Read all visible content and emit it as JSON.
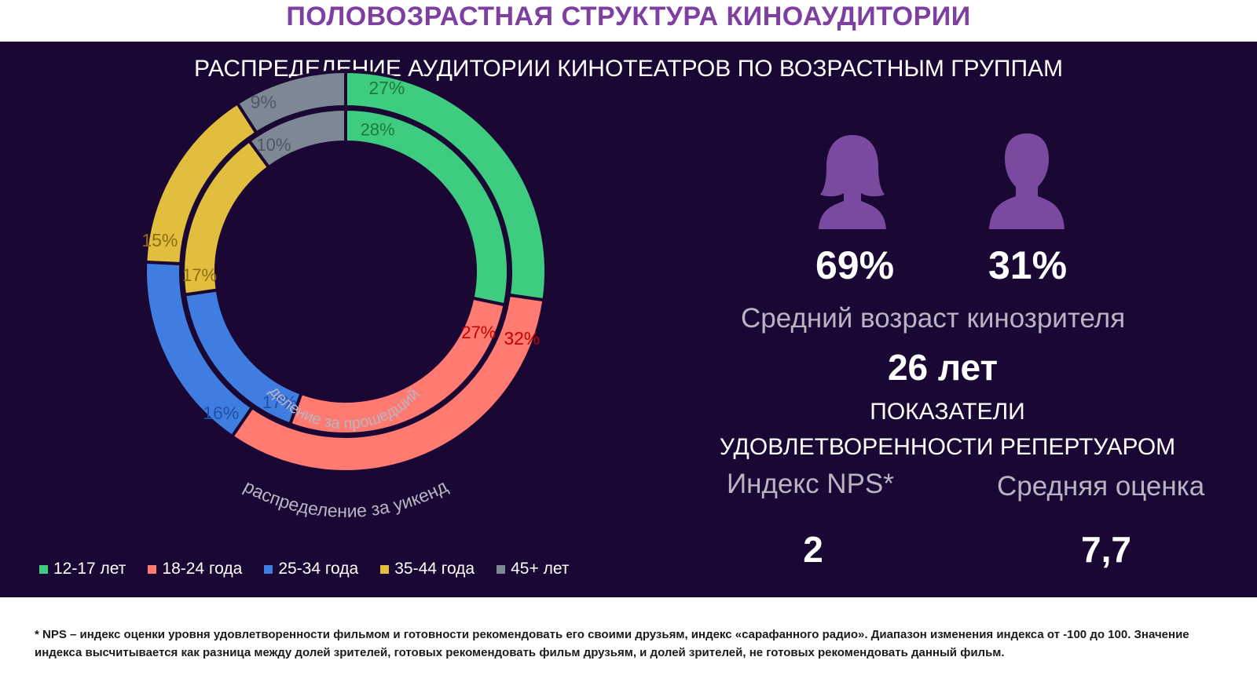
{
  "page_title": "ПОЛОВОЗРАСТНАЯ СТРУКТУРА КИНОАУДИТОРИИ",
  "chart_data": {
    "type": "pie",
    "title": "РАСПРЕДЕЛЕНИЕ АУДИТОРИИ КИНОТЕАТРОВ ПО ВОЗРАСТНЫМ ГРУППАМ",
    "categories": [
      "12-17 лет",
      "18-24 года",
      "25-34 года",
      "35-44 года",
      "45+ лет"
    ],
    "series": [
      {
        "name": "распределение за уикенд",
        "values": [
          27,
          32,
          16,
          15,
          9
        ],
        "labels": [
          "27%",
          "32%",
          "16%",
          "15%",
          "9%"
        ]
      },
      {
        "name": "распределение за прошедший уикенд",
        "values": [
          28,
          27,
          17,
          17,
          10
        ],
        "labels": [
          "28%",
          "27%",
          "17%",
          "17%",
          "10%"
        ]
      }
    ],
    "colors": [
      "#3ecc80",
      "#ff7b72",
      "#3f7ee0",
      "#e2be3e",
      "#7e8895"
    ],
    "label_colors": [
      "#1f7a3a",
      "#c40000",
      "#1f4fa8",
      "#8a6d12",
      "#4f5762"
    ],
    "legend_position": "bottom"
  },
  "stats": {
    "female_pct": "69%",
    "male_pct": "31%",
    "avg_age_label": "Средний возраст кинозрителя",
    "avg_age_value": "26 лет",
    "satisfaction_heading_line1": "ПОКАЗАТЕЛИ",
    "satisfaction_heading_line2": "УДОВЛЕТВОРЕННОСТИ РЕПЕРТУАРОМ",
    "nps_label": "Индекс NPS*",
    "nps_value": "2",
    "rating_label": "Средняя оценка",
    "rating_value": "7,7"
  },
  "icons": {
    "female": "female-person-icon",
    "male": "male-person-icon",
    "icon_color": "#7a4aa0"
  },
  "footnote": "* NPS – индекс оценки уровня удовлетворенности фильмом и готовности рекомендовать его своими друзьям, индекс «сарафанного радио».  Диапазон изменения индекса от -100 до 100. Значение индекса высчитывается как разница между долей зрителей, готовых рекомендовать фильм друзьям, и долей зрителей, не готовых рекомендовать данный фильм."
}
